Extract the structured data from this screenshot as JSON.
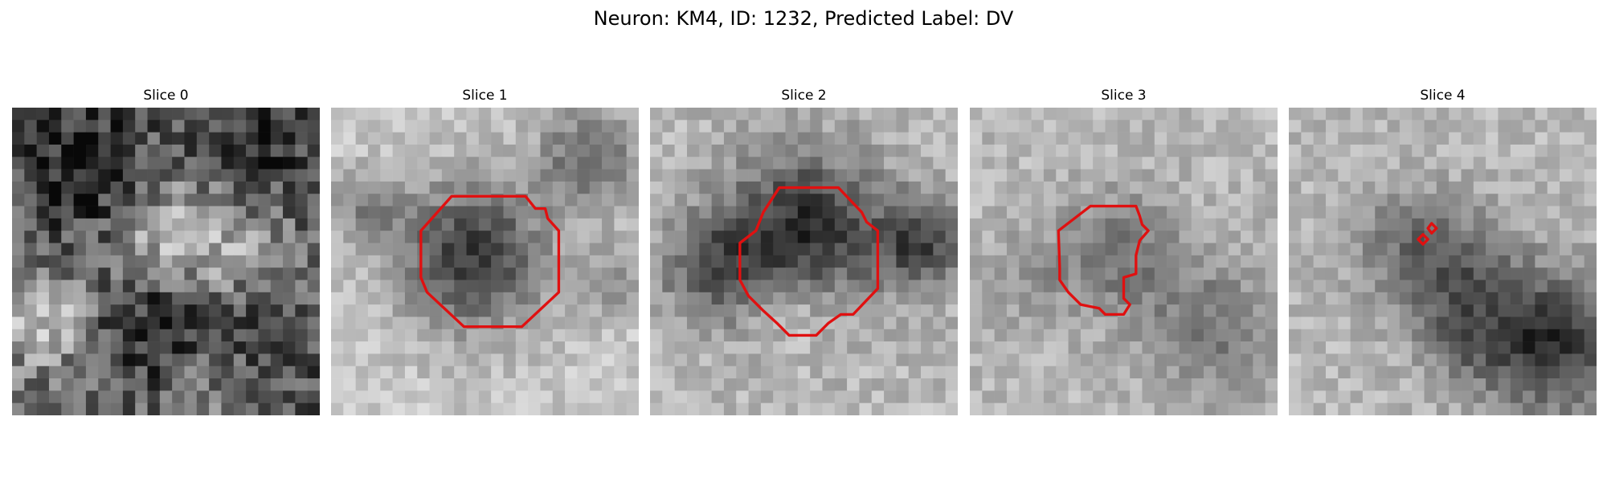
{
  "figure": {
    "title": "Neuron: KM4, ID: 1232, Predicted Label: DV"
  },
  "panels": [
    {
      "title": "Slice 0",
      "has_contour": false
    },
    {
      "title": "Slice 1",
      "has_contour": true
    },
    {
      "title": "Slice 2",
      "has_contour": true
    },
    {
      "title": "Slice 3",
      "has_contour": true
    },
    {
      "title": "Slice 4",
      "has_contour": true
    }
  ],
  "colors": {
    "contour": "#e01010"
  },
  "image": {
    "colormap": "grayscale",
    "grid_cells": 25
  }
}
